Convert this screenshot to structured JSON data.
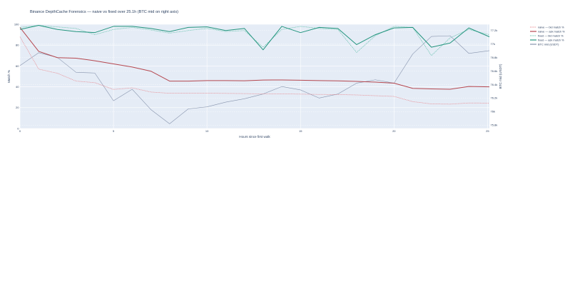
{
  "chart_data": {
    "type": "line",
    "title": "Binance DepthCache Forensics — naive vs fixed over 25.1h (BTC mid on right axis)",
    "xlabel": "Hours since first walk",
    "ylabel": "Match %",
    "y2label": "BTC mid (USDT)",
    "xlim": [
      0,
      25.1
    ],
    "ylim": [
      0,
      100
    ],
    "y2lim": [
      75750,
      77290
    ],
    "x_ticks": [
      "0",
      "5",
      "10",
      "15",
      "20",
      "25"
    ],
    "x_tick_values": [
      0,
      5,
      10,
      15,
      20,
      25
    ],
    "y_ticks": [
      "0",
      "20",
      "40",
      "60",
      "80",
      "100"
    ],
    "y_tick_values": [
      0,
      20,
      40,
      60,
      80,
      100
    ],
    "y2_ticks": [
      "75.8k",
      "76k",
      "76.2k",
      "76.4k",
      "76.6k",
      "76.8k",
      "77k",
      "77.2k"
    ],
    "y2_tick_values": [
      75800,
      76000,
      76200,
      76400,
      76600,
      76800,
      77000,
      77200
    ],
    "grid": true,
    "legend_position": "right",
    "colors": {
      "naive_bid": "#e8878e",
      "naive_ask": "#b5474f",
      "fixed_bid": "#5cbfa8",
      "fixed_ask": "#23957e",
      "btc_mid": "#8794ad",
      "plot_bg": "#e5ecf6"
    },
    "series": [
      {
        "name": "naive — bid match %",
        "axis": "y",
        "style": "dotted",
        "color": "#e8878e",
        "x": [
          0,
          1,
          2,
          3,
          4,
          5,
          6,
          7,
          8,
          9,
          10,
          11,
          12,
          13,
          14,
          15,
          16,
          17,
          18,
          19,
          20,
          21,
          22,
          23,
          24,
          25.1
        ],
        "y": [
          88,
          57,
          53,
          45.5,
          44,
          37.5,
          39,
          35,
          33.8,
          34,
          33.9,
          33.7,
          33.5,
          33.2,
          33.3,
          33,
          32.7,
          32.6,
          32.2,
          31.5,
          30.8,
          25.8,
          23.6,
          23.4,
          24.5,
          24.4
        ]
      },
      {
        "name": "naive — ask match %",
        "axis": "y",
        "style": "solid",
        "color": "#b5474f",
        "x": [
          0,
          1,
          2,
          3,
          4,
          5,
          6,
          7,
          8,
          9,
          10,
          11,
          12,
          13,
          14,
          15,
          16,
          17,
          18,
          19,
          20,
          21,
          22,
          23,
          24,
          25.1
        ],
        "y": [
          97,
          74,
          68,
          67.5,
          65,
          62,
          59,
          55,
          45.5,
          45.5,
          46,
          46,
          45.8,
          46.5,
          46.6,
          46.3,
          46,
          45.7,
          45.2,
          44.5,
          43.5,
          38.5,
          38,
          37.7,
          40.3,
          40
        ]
      },
      {
        "name": "fixed — bid match %",
        "axis": "y",
        "style": "dotted",
        "color": "#5cbfa8",
        "x": [
          0,
          1,
          2,
          3,
          4,
          5,
          6,
          7,
          8,
          9,
          10,
          11,
          12,
          13,
          14,
          15,
          16,
          17,
          18,
          19,
          20,
          21,
          22,
          23,
          24,
          25.1
        ],
        "y": [
          97,
          99,
          97.5,
          96,
          90,
          95,
          97,
          94.5,
          91.5,
          94,
          96,
          93,
          94,
          78,
          95,
          98,
          96,
          95,
          73,
          89,
          98,
          97,
          70,
          87,
          95,
          90
        ]
      },
      {
        "name": "fixed — ask match %",
        "axis": "y",
        "style": "solid",
        "color": "#23957e",
        "x": [
          0,
          1,
          2,
          3,
          4,
          5,
          6,
          7,
          8,
          9,
          10,
          11,
          12,
          13,
          14,
          15,
          16,
          17,
          18,
          19,
          20,
          21,
          22,
          23,
          24,
          25.1
        ],
        "y": [
          95,
          99,
          95,
          93,
          92,
          98,
          98,
          96,
          93,
          97,
          97.5,
          94,
          96,
          75.5,
          98,
          92,
          97,
          96,
          80.5,
          90,
          96.5,
          97,
          78,
          82,
          96.5,
          88
        ]
      },
      {
        "name": "BTC mid (USDT)",
        "axis": "y2",
        "style": "solid",
        "color": "#8794ad",
        "x": [
          0,
          1,
          2,
          3,
          4,
          5,
          6,
          7,
          8,
          9,
          10,
          11,
          12,
          13,
          14,
          15,
          16,
          17,
          18,
          19,
          20,
          21,
          22,
          23,
          24,
          25.1
        ],
        "y": [
          76680,
          76870,
          76800,
          76580,
          76570,
          76160,
          76330,
          76030,
          75820,
          76040,
          76070,
          76140,
          76190,
          76260,
          76370,
          76320,
          76200,
          76260,
          76420,
          76470,
          76420,
          76850,
          77110,
          77120,
          76860,
          76900
        ]
      }
    ]
  }
}
